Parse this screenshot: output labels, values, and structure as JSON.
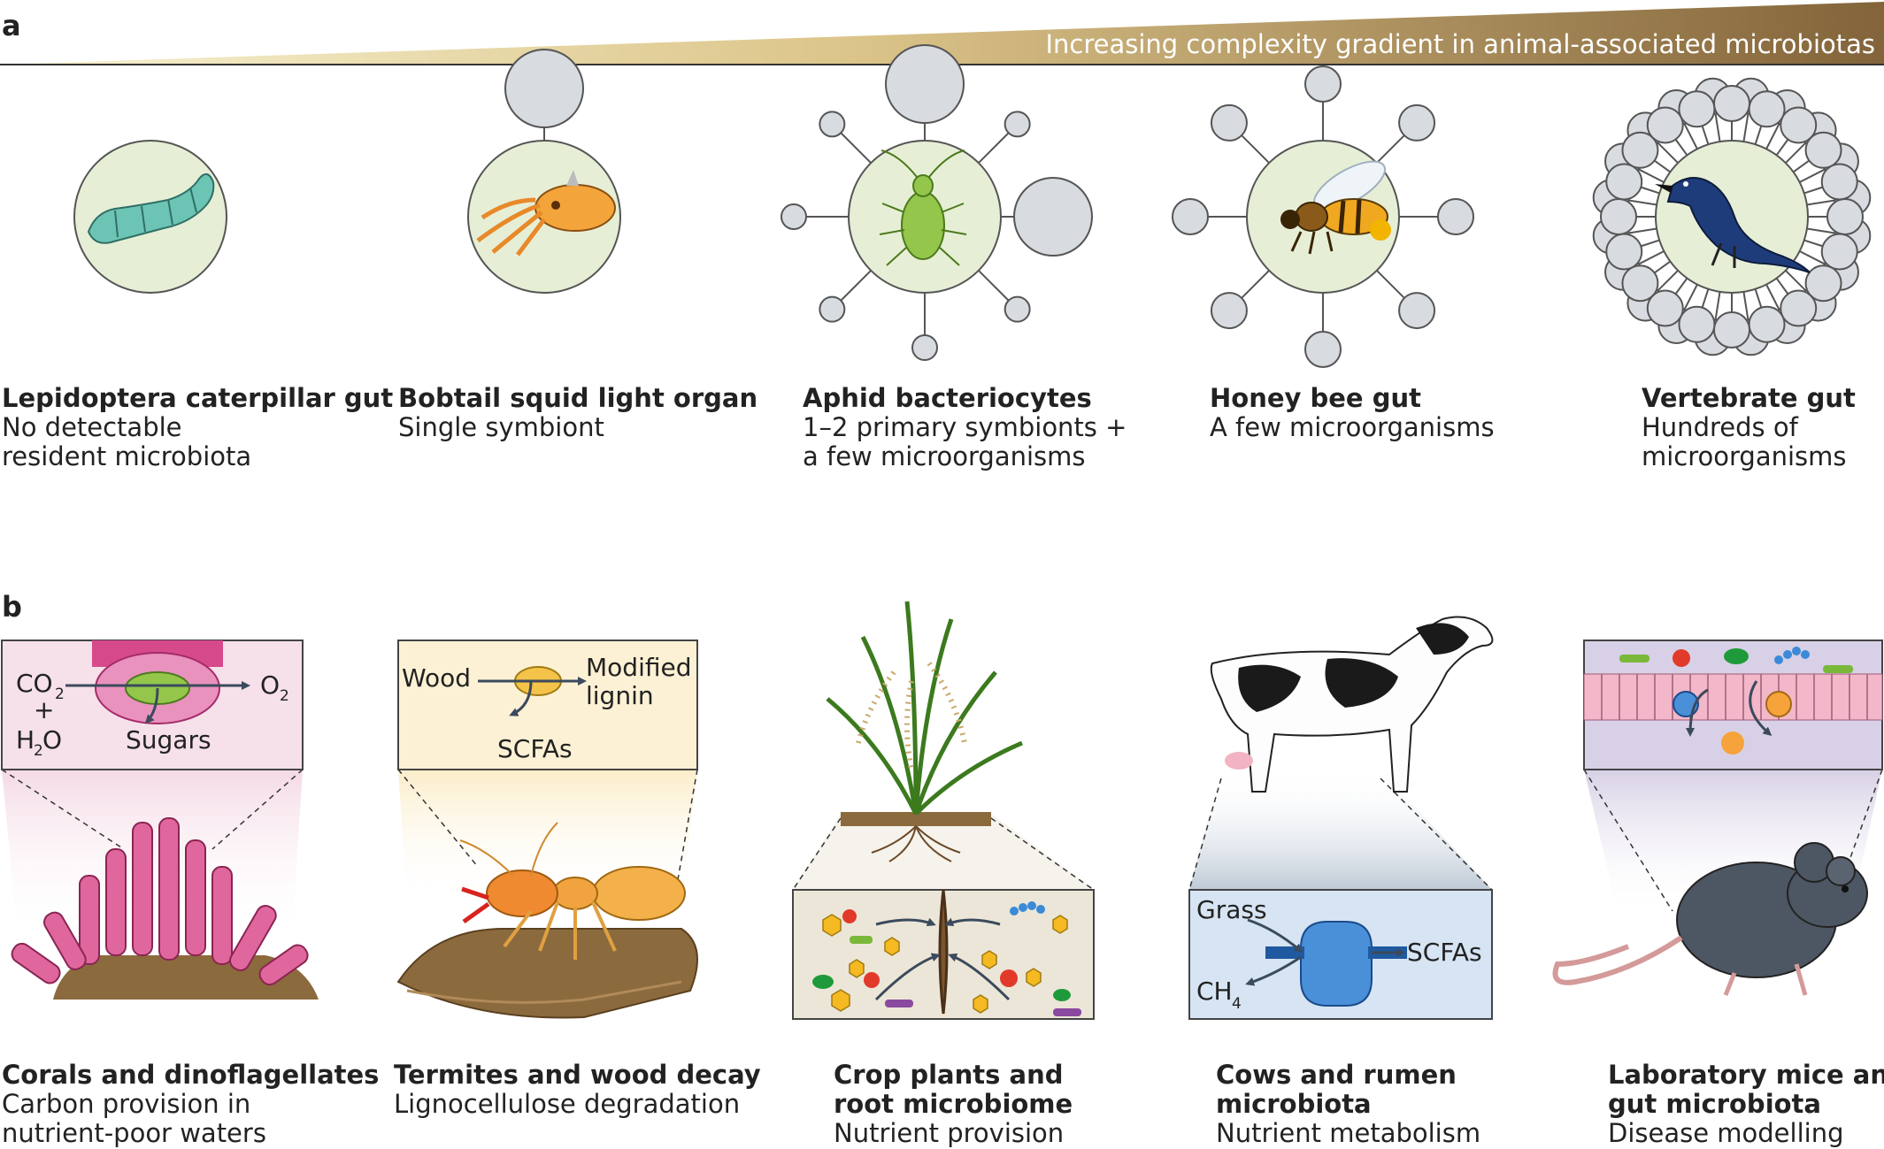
{
  "panel_a": {
    "letter": "a",
    "gradient_label": "Increasing complexity gradient in animal-associated microbiotas",
    "items": [
      {
        "title": "Lepidoptera caterpillar gut",
        "sub1": "No detectable",
        "sub2": "resident microbiota",
        "icon": "caterpillar-icon"
      },
      {
        "title": "Bobtail squid light organ",
        "sub1": "Single symbiont",
        "sub2": "",
        "icon": "squid-icon"
      },
      {
        "title": "Aphid bacteriocytes",
        "sub1": "1–2 primary symbionts +",
        "sub2": "a few microorganisms",
        "icon": "aphid-icon"
      },
      {
        "title": "Honey bee gut",
        "sub1": "A few microorganisms",
        "sub2": "",
        "icon": "bee-icon"
      },
      {
        "title": "Vertebrate gut",
        "sub1": "Hundreds of",
        "sub2": "microorganisms",
        "icon": "bird-icon"
      }
    ]
  },
  "panel_b": {
    "letter": "b",
    "items": [
      {
        "title1": "Corals and dinoflagellates",
        "title2": "",
        "sub1": "Carbon provision in",
        "sub2": "nutrient-poor waters",
        "icon": "coral-icon"
      },
      {
        "title1": "Termites and wood decay",
        "title2": "",
        "sub1": "Lignocellulose degradation",
        "sub2": "",
        "icon": "termite-icon"
      },
      {
        "title1": "Crop plants and",
        "title2": "root microbiome",
        "sub1": "Nutrient provision",
        "sub2": "",
        "icon": "plant-icon"
      },
      {
        "title1": "Cows and rumen",
        "title2": "microbiota",
        "sub1": "Nutrient metabolism",
        "sub2": "",
        "icon": "cow-icon"
      },
      {
        "title1": "Laboratory mice and",
        "title2": "gut microbiota",
        "sub1": "Disease modelling",
        "sub2": "",
        "icon": "mouse-icon"
      }
    ],
    "insets": {
      "coral": {
        "co2": "CO",
        "co2_sub": "2",
        "plus": "+",
        "h": "H",
        "h2o_sub": "2",
        "o_after": "O",
        "o2": "O",
        "o2_sub": "2",
        "sugars": "Sugars"
      },
      "termite": {
        "wood": "Wood",
        "modified": "Modified",
        "lignin": "lignin",
        "scfas": "SCFAs"
      },
      "cow": {
        "grass": "Grass",
        "scfas": "SCFAs",
        "ch": "CH",
        "ch4_sub": "4"
      }
    }
  },
  "colors": {
    "gradient_start": "#f4eec8",
    "gradient_end": "#8b6a3d",
    "organ_circle": "#e6efd6",
    "microbe_circle": "#d8dbdf",
    "coral_pink": "#e0679d",
    "inset_pink": "#f6e0ea",
    "inset_yellow": "#fcf1d4",
    "inset_soil": "#ece6d8",
    "inset_blue": "#d6e4f3",
    "inset_lavender": "#d8d0e6"
  }
}
